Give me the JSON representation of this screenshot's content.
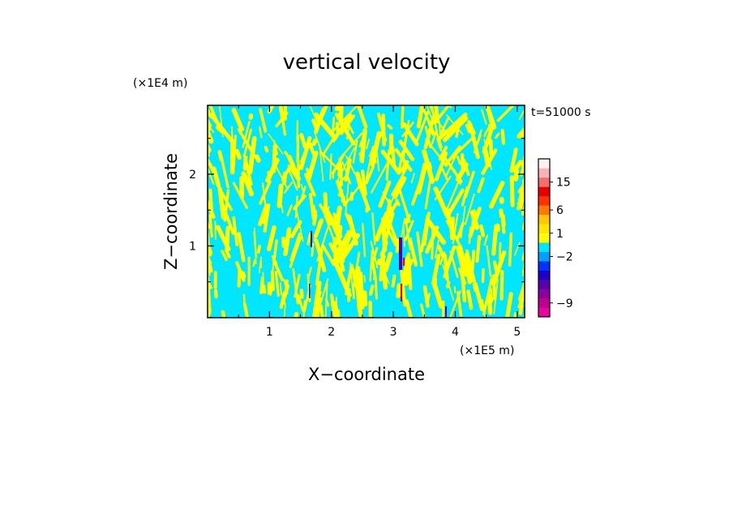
{
  "chart_data": {
    "type": "heatmap",
    "title": "vertical velocity",
    "xlabel": "X−coordinate",
    "ylabel": "Z−coordinate",
    "x_unit": "(×1E5 m)",
    "y_unit": "(×1E4 m)",
    "time_label": "t=51000 s",
    "xlim": [
      0,
      5.12
    ],
    "ylim": [
      0,
      2.96
    ],
    "x_ticks": [
      1,
      2,
      3,
      4,
      5
    ],
    "y_ticks": [
      1,
      2
    ],
    "x_tick_labels": [
      "1",
      "2",
      "3",
      "4",
      "5"
    ],
    "y_tick_labels": [
      "1",
      "2"
    ],
    "grid": false,
    "colorbar": {
      "levels_colors": [
        "#e800a0",
        "#c0008c",
        "#8c00a0",
        "#5a00aa",
        "#1e00c8",
        "#0032ff",
        "#00a0ff",
        "#00e6ff",
        "#ffff00",
        "#ffe600",
        "#ffc800",
        "#ff7800",
        "#ff3200",
        "#e80000",
        "#f07070",
        "#f8b4b4",
        "#fff0f0"
      ],
      "labels": [
        {
          "text": "−9",
          "level_index": 1.5
        },
        {
          "text": "−2",
          "level_index": 6.5
        },
        {
          "text": "1",
          "level_index": 9.0
        },
        {
          "text": "6",
          "level_index": 11.5
        },
        {
          "text": "15",
          "level_index": 14.5
        }
      ]
    },
    "field_colors": {
      "negative": "#00e6ff",
      "positive": "#ffff00",
      "strong_negative": "#5a00aa",
      "strong_positive": "#e80000"
    }
  }
}
